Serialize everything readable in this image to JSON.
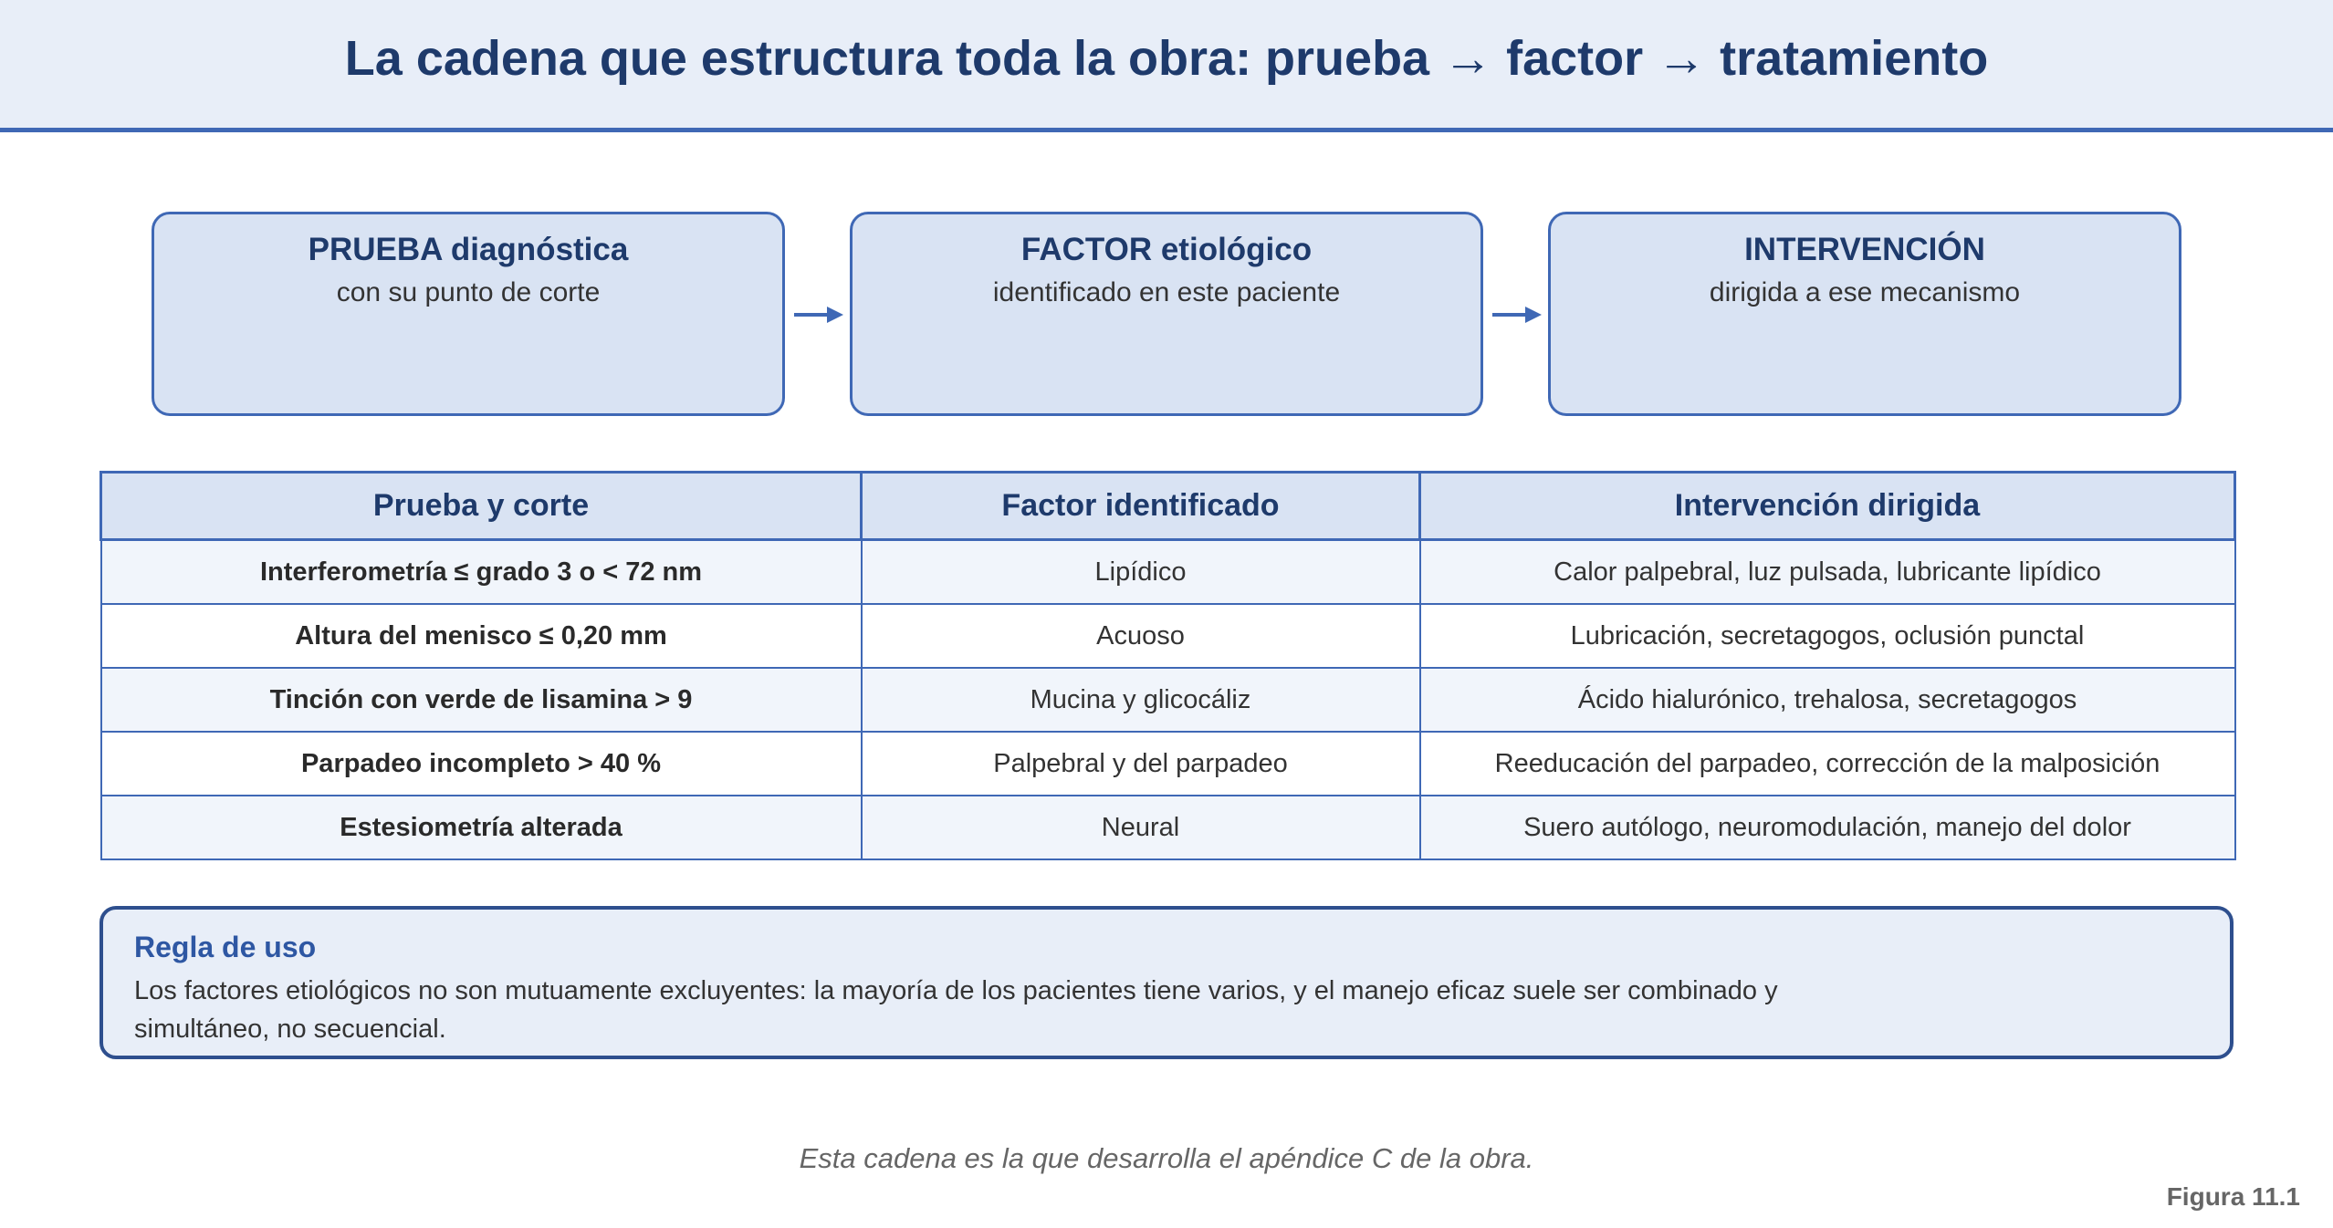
{
  "title": "La cadena que estructura toda la obra: prueba → factor → tratamiento",
  "flow": [
    {
      "title": "PRUEBA diagnóstica",
      "subtitle": "con su punto de corte"
    },
    {
      "title": "FACTOR etiológico",
      "subtitle": "identificado en este paciente"
    },
    {
      "title": "INTERVENCIÓN",
      "subtitle": "dirigida a ese mecanismo"
    }
  ],
  "table": {
    "headers": [
      "Prueba y corte",
      "Factor identificado",
      "Intervención dirigida"
    ],
    "rows": [
      [
        "Interferometría ≤ grado 3 o < 72 nm",
        "Lipídico",
        "Calor palpebral, luz pulsada, lubricante lipídico"
      ],
      [
        "Altura del menisco ≤ 0,20 mm",
        "Acuoso",
        "Lubricación, secretagogos, oclusión punctal"
      ],
      [
        "Tinción con verde de lisamina > 9",
        "Mucina y glicocáliz",
        "Ácido hialurónico, trehalosa, secretagogos"
      ],
      [
        "Parpadeo incompleto > 40 %",
        "Palpebral y del parpadeo",
        "Reeducación del parpadeo, corrección de la malposición"
      ],
      [
        "Estesiometría alterada",
        "Neural",
        "Suero autólogo, neuromodulación, manejo del dolor"
      ]
    ]
  },
  "rule": {
    "title": "Regla de uso",
    "text": "Los factores etiológicos no son mutuamente excluyentes: la mayoría de los pacientes tiene varios, y el manejo eficaz suele ser combinado y simultáneo, no secuencial."
  },
  "caption": "Esta cadena es la que desarrolla el apéndice C de la obra.",
  "figure_label": "Figura 11.1",
  "colors": {
    "accent": "#3f68b5",
    "title": "#1e3a6b",
    "box_fill": "#d9e3f3",
    "header_fill": "#e8eef8"
  }
}
